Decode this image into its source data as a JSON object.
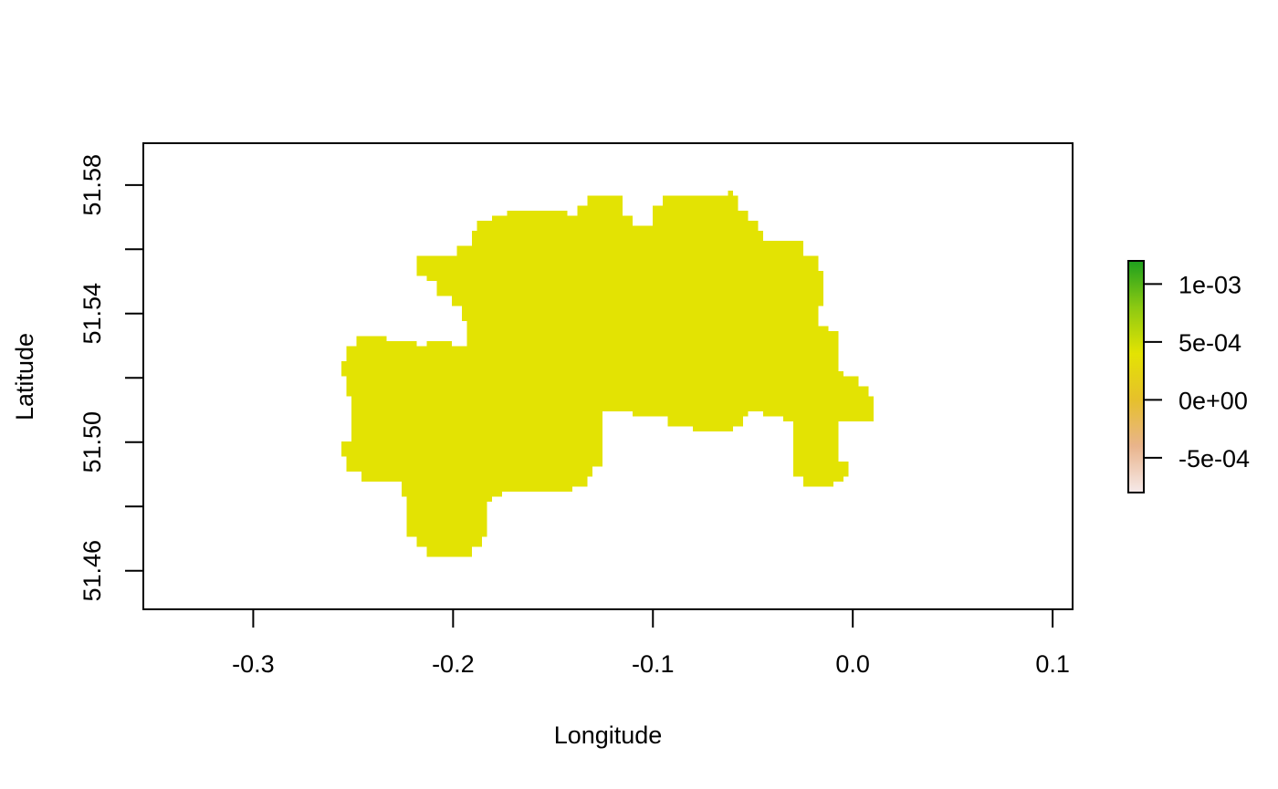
{
  "chart_data": {
    "type": "heatmap",
    "title": "",
    "xlabel": "Longitude",
    "ylabel": "Latitude",
    "xlim": [
      -0.355,
      0.11
    ],
    "ylim": [
      51.448,
      51.593
    ],
    "x_ticks": [
      -0.3,
      -0.2,
      -0.1,
      0.0,
      0.1
    ],
    "x_tick_labels": [
      "-0.3",
      "-0.2",
      "-0.1",
      "0.0",
      "0.1"
    ],
    "y_ticks": [
      51.46,
      51.48,
      51.5,
      51.52,
      51.54,
      51.56,
      51.58
    ],
    "y_tick_labels": [
      "51.46",
      "",
      "51.50",
      "",
      "51.54",
      "",
      "51.58"
    ],
    "grid": false,
    "region_value": 0.0003,
    "region_color": "#e3e303",
    "region_outline_lonlat": [
      [
        -0.218,
        51.555
      ],
      [
        -0.218,
        51.558
      ],
      [
        -0.206,
        51.558
      ],
      [
        -0.198,
        51.561
      ],
      [
        -0.19,
        51.565
      ],
      [
        -0.188,
        51.569
      ],
      [
        -0.18,
        51.57
      ],
      [
        -0.174,
        51.572
      ],
      [
        -0.146,
        51.572
      ],
      [
        -0.143,
        51.571
      ],
      [
        -0.138,
        51.573
      ],
      [
        -0.133,
        51.576
      ],
      [
        -0.123,
        51.576
      ],
      [
        -0.116,
        51.57
      ],
      [
        -0.11,
        51.568
      ],
      [
        -0.102,
        51.568
      ],
      [
        -0.099,
        51.574
      ],
      [
        -0.094,
        51.576
      ],
      [
        -0.08,
        51.577
      ],
      [
        -0.07,
        51.577
      ],
      [
        -0.063,
        51.578
      ],
      [
        -0.06,
        51.576
      ],
      [
        -0.058,
        51.572
      ],
      [
        -0.052,
        51.569
      ],
      [
        -0.048,
        51.565
      ],
      [
        -0.046,
        51.563
      ],
      [
        -0.042,
        51.562
      ],
      [
        -0.032,
        51.562
      ],
      [
        -0.025,
        51.558
      ],
      [
        -0.017,
        51.553
      ],
      [
        -0.014,
        51.546
      ],
      [
        -0.014,
        51.543
      ],
      [
        -0.018,
        51.54
      ],
      [
        -0.018,
        51.536
      ],
      [
        -0.011,
        51.534
      ],
      [
        -0.008,
        51.531
      ],
      [
        -0.008,
        51.522
      ],
      [
        -0.004,
        51.52
      ],
      [
        0.002,
        51.517
      ],
      [
        0.007,
        51.515
      ],
      [
        0.01,
        51.512
      ],
      [
        0.01,
        51.507
      ],
      [
        0.0,
        51.507
      ],
      [
        -0.006,
        51.506
      ],
      [
        -0.006,
        51.494
      ],
      [
        -0.003,
        51.493
      ],
      [
        -0.001,
        51.49
      ],
      [
        -0.004,
        51.488
      ],
      [
        -0.009,
        51.486
      ],
      [
        -0.02,
        51.486
      ],
      [
        -0.026,
        51.489
      ],
      [
        -0.03,
        51.492
      ],
      [
        -0.03,
        51.506
      ],
      [
        -0.035,
        51.508
      ],
      [
        -0.045,
        51.509
      ],
      [
        -0.052,
        51.508
      ],
      [
        -0.056,
        51.505
      ],
      [
        -0.06,
        51.503
      ],
      [
        -0.075,
        51.503
      ],
      [
        -0.081,
        51.505
      ],
      [
        -0.092,
        51.508
      ],
      [
        -0.11,
        51.509
      ],
      [
        -0.12,
        51.51
      ],
      [
        -0.126,
        51.507
      ],
      [
        -0.126,
        51.492
      ],
      [
        -0.13,
        51.489
      ],
      [
        -0.133,
        51.486
      ],
      [
        -0.14,
        51.485
      ],
      [
        -0.15,
        51.485
      ],
      [
        -0.16,
        51.484
      ],
      [
        -0.175,
        51.483
      ],
      [
        -0.181,
        51.481
      ],
      [
        -0.183,
        51.477
      ],
      [
        -0.183,
        51.471
      ],
      [
        -0.186,
        51.468
      ],
      [
        -0.19,
        51.465
      ],
      [
        -0.206,
        51.465
      ],
      [
        -0.212,
        51.467
      ],
      [
        -0.219,
        51.471
      ],
      [
        -0.222,
        51.476
      ],
      [
        -0.224,
        51.483
      ],
      [
        -0.226,
        51.488
      ],
      [
        -0.243,
        51.488
      ],
      [
        -0.245,
        51.491
      ],
      [
        -0.253,
        51.495
      ],
      [
        -0.255,
        51.5
      ],
      [
        -0.252,
        51.503
      ],
      [
        -0.25,
        51.506
      ],
      [
        -0.25,
        51.514
      ],
      [
        -0.253,
        51.521
      ],
      [
        -0.255,
        51.525
      ],
      [
        -0.254,
        51.53
      ],
      [
        -0.249,
        51.533
      ],
      [
        -0.238,
        51.533
      ],
      [
        -0.233,
        51.531
      ],
      [
        -0.224,
        51.531
      ],
      [
        -0.217,
        51.53
      ],
      [
        -0.212,
        51.532
      ],
      [
        -0.206,
        51.532
      ],
      [
        -0.2,
        51.53
      ],
      [
        -0.194,
        51.532
      ],
      [
        -0.192,
        51.538
      ],
      [
        -0.196,
        51.542
      ],
      [
        -0.201,
        51.545
      ],
      [
        -0.208,
        51.55
      ],
      [
        -0.212,
        51.552
      ],
      [
        -0.218,
        51.555
      ]
    ],
    "legend": {
      "placement": "right",
      "type": "colorbar",
      "range": [
        -0.0008,
        0.0012
      ],
      "ticks": [
        -0.0005,
        0.0,
        0.0005,
        0.001
      ],
      "tick_labels": [
        "-5e-04",
        "0e+00",
        "5e-04",
        "1e-03"
      ],
      "color_stops": [
        "#f6eaea",
        "#e9b48c",
        "#e6c02c",
        "#e3e303",
        "#8cc912",
        "#1ea01e"
      ]
    }
  }
}
